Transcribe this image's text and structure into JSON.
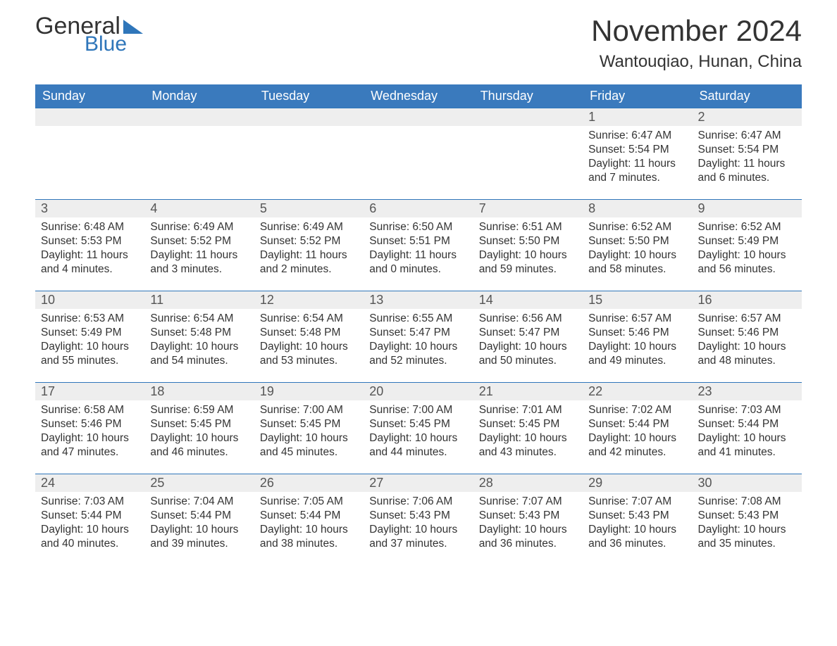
{
  "logo": {
    "part1": "General",
    "part2": "Blue"
  },
  "title": "November 2024",
  "location": "Wantouqiao, Hunan, China",
  "header_row": [
    "Sunday",
    "Monday",
    "Tuesday",
    "Wednesday",
    "Thursday",
    "Friday",
    "Saturday"
  ],
  "colors": {
    "header_bg": "#3a7abd",
    "header_fg": "#ffffff",
    "daynum_bg": "#eeeeee",
    "daynum_border": "#2f76ba",
    "text": "#333333",
    "bg": "#ffffff"
  },
  "weeks": [
    [
      null,
      null,
      null,
      null,
      null,
      {
        "n": 1,
        "sr": "6:47 AM",
        "ss": "5:54 PM",
        "dl": "11 hours and 7 minutes."
      },
      {
        "n": 2,
        "sr": "6:47 AM",
        "ss": "5:54 PM",
        "dl": "11 hours and 6 minutes."
      }
    ],
    [
      {
        "n": 3,
        "sr": "6:48 AM",
        "ss": "5:53 PM",
        "dl": "11 hours and 4 minutes."
      },
      {
        "n": 4,
        "sr": "6:49 AM",
        "ss": "5:52 PM",
        "dl": "11 hours and 3 minutes."
      },
      {
        "n": 5,
        "sr": "6:49 AM",
        "ss": "5:52 PM",
        "dl": "11 hours and 2 minutes."
      },
      {
        "n": 6,
        "sr": "6:50 AM",
        "ss": "5:51 PM",
        "dl": "11 hours and 0 minutes."
      },
      {
        "n": 7,
        "sr": "6:51 AM",
        "ss": "5:50 PM",
        "dl": "10 hours and 59 minutes."
      },
      {
        "n": 8,
        "sr": "6:52 AM",
        "ss": "5:50 PM",
        "dl": "10 hours and 58 minutes."
      },
      {
        "n": 9,
        "sr": "6:52 AM",
        "ss": "5:49 PM",
        "dl": "10 hours and 56 minutes."
      }
    ],
    [
      {
        "n": 10,
        "sr": "6:53 AM",
        "ss": "5:49 PM",
        "dl": "10 hours and 55 minutes."
      },
      {
        "n": 11,
        "sr": "6:54 AM",
        "ss": "5:48 PM",
        "dl": "10 hours and 54 minutes."
      },
      {
        "n": 12,
        "sr": "6:54 AM",
        "ss": "5:48 PM",
        "dl": "10 hours and 53 minutes."
      },
      {
        "n": 13,
        "sr": "6:55 AM",
        "ss": "5:47 PM",
        "dl": "10 hours and 52 minutes."
      },
      {
        "n": 14,
        "sr": "6:56 AM",
        "ss": "5:47 PM",
        "dl": "10 hours and 50 minutes."
      },
      {
        "n": 15,
        "sr": "6:57 AM",
        "ss": "5:46 PM",
        "dl": "10 hours and 49 minutes."
      },
      {
        "n": 16,
        "sr": "6:57 AM",
        "ss": "5:46 PM",
        "dl": "10 hours and 48 minutes."
      }
    ],
    [
      {
        "n": 17,
        "sr": "6:58 AM",
        "ss": "5:46 PM",
        "dl": "10 hours and 47 minutes."
      },
      {
        "n": 18,
        "sr": "6:59 AM",
        "ss": "5:45 PM",
        "dl": "10 hours and 46 minutes."
      },
      {
        "n": 19,
        "sr": "7:00 AM",
        "ss": "5:45 PM",
        "dl": "10 hours and 45 minutes."
      },
      {
        "n": 20,
        "sr": "7:00 AM",
        "ss": "5:45 PM",
        "dl": "10 hours and 44 minutes."
      },
      {
        "n": 21,
        "sr": "7:01 AM",
        "ss": "5:45 PM",
        "dl": "10 hours and 43 minutes."
      },
      {
        "n": 22,
        "sr": "7:02 AM",
        "ss": "5:44 PM",
        "dl": "10 hours and 42 minutes."
      },
      {
        "n": 23,
        "sr": "7:03 AM",
        "ss": "5:44 PM",
        "dl": "10 hours and 41 minutes."
      }
    ],
    [
      {
        "n": 24,
        "sr": "7:03 AM",
        "ss": "5:44 PM",
        "dl": "10 hours and 40 minutes."
      },
      {
        "n": 25,
        "sr": "7:04 AM",
        "ss": "5:44 PM",
        "dl": "10 hours and 39 minutes."
      },
      {
        "n": 26,
        "sr": "7:05 AM",
        "ss": "5:44 PM",
        "dl": "10 hours and 38 minutes."
      },
      {
        "n": 27,
        "sr": "7:06 AM",
        "ss": "5:43 PM",
        "dl": "10 hours and 37 minutes."
      },
      {
        "n": 28,
        "sr": "7:07 AM",
        "ss": "5:43 PM",
        "dl": "10 hours and 36 minutes."
      },
      {
        "n": 29,
        "sr": "7:07 AM",
        "ss": "5:43 PM",
        "dl": "10 hours and 36 minutes."
      },
      {
        "n": 30,
        "sr": "7:08 AM",
        "ss": "5:43 PM",
        "dl": "10 hours and 35 minutes."
      }
    ]
  ],
  "labels": {
    "sunrise": "Sunrise: ",
    "sunset": "Sunset: ",
    "daylight": "Daylight: "
  }
}
